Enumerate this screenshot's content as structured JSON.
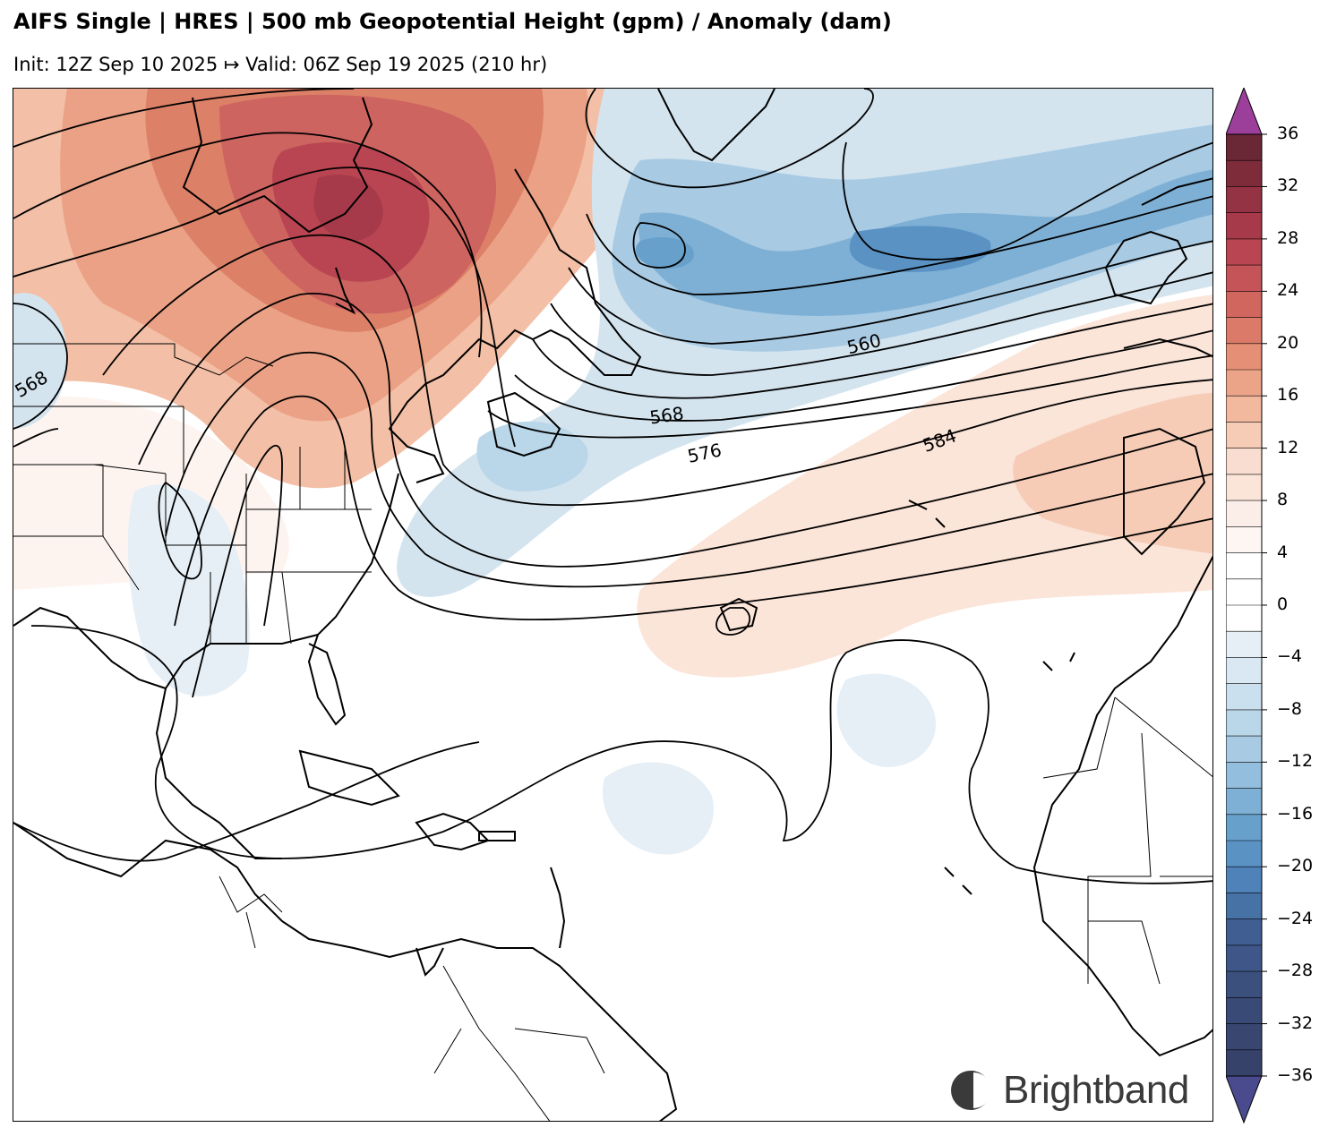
{
  "header": {
    "title": "AIFS Single | HRES | 500 mb Geopotential Height (gpm) / Anomaly (dam)",
    "subtitle": "Init: 12Z Sep 10 2025 ↦ Valid: 06Z Sep 19 2025 (210 hr)"
  },
  "contour_labels": [
    "568",
    "560",
    "568",
    "576",
    "584"
  ],
  "colorbar": {
    "ticks": [
      "36",
      "32",
      "28",
      "24",
      "20",
      "16",
      "12",
      "8",
      "4",
      "0",
      "−4",
      "−8",
      "−12",
      "−16",
      "−20",
      "−24",
      "−28",
      "−32",
      "−36"
    ],
    "min": -36,
    "max": 36,
    "step": 2,
    "colors": [
      "#3b4f82",
      "#405e92",
      "#4672a6",
      "#4f82b8",
      "#5a92c4",
      "#68a0cc",
      "#7eb0d5",
      "#94bedd",
      "#a8cae3",
      "#bad6e9",
      "#cbe0ee",
      "#d9e8f2",
      "#e6eff6",
      "#ffffff",
      "#ffffff",
      "#f8ece6",
      "#f9ddd0",
      "#f6ccb7",
      "#f3b99f",
      "#eca489",
      "#e48f76",
      "#db7a68",
      "#d0665e",
      "#c45458",
      "#b84551",
      "#a63a4a",
      "#943343",
      "#7e2b3a",
      "#6c2834",
      "#8a4a6a",
      "#7d3a3e",
      "#6e2d35",
      "#6a2735",
      "#5e2330",
      "#4e1f2b",
      "#3f1a26"
    ],
    "over_color": "#9b3f9b",
    "under_color": "#4a4a8f"
  },
  "logo": {
    "text": "Brightband"
  }
}
